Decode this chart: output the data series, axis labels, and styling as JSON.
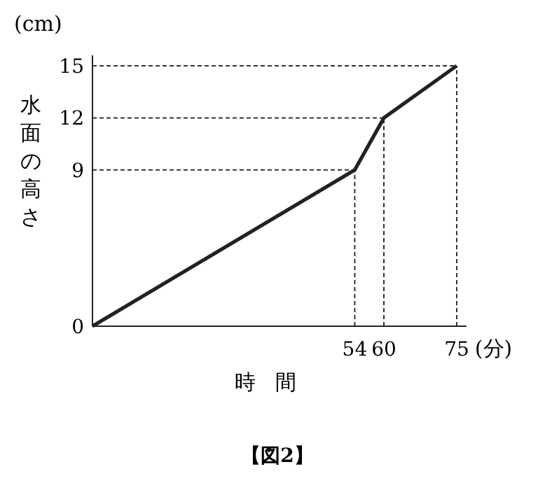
{
  "chart_data": {
    "type": "line",
    "xlabel": "時間",
    "ylabel": "水面の高さ",
    "x": [
      0,
      54,
      60,
      75
    ],
    "series": [
      {
        "color": "#222222",
        "values": [
          0,
          9,
          12,
          15
        ]
      }
    ],
    "xlim": [
      0,
      77
    ],
    "ylim": [
      0,
      15.6
    ],
    "xticks": [
      54,
      60,
      75
    ],
    "yticks": [
      0,
      9,
      12,
      15
    ],
    "ref_lines": [
      {
        "axis": "x",
        "value": 54,
        "line_style": "dashed"
      },
      {
        "axis": "x",
        "value": 60,
        "line_style": "dashed"
      },
      {
        "axis": "x",
        "value": 75,
        "line_style": "dashed"
      },
      {
        "axis": "y",
        "value": 9,
        "line_style": "dashed"
      },
      {
        "axis": "y",
        "value": 12,
        "line_style": "dashed"
      },
      {
        "axis": "y",
        "value": 15,
        "line_style": "dashed"
      }
    ],
    "annotations": [
      "(cm)",
      "(分)",
      "【図2】"
    ],
    "marker": "none",
    "line_style": "solid",
    "grid": false
  }
}
